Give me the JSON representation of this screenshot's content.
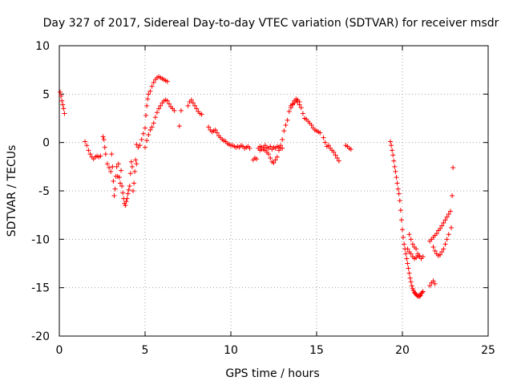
{
  "chart_data": {
    "type": "scatter",
    "title": "Day 327 of 2017, Sidereal Day-to-day VTEC variation (SDTVAR) for receiver msdr",
    "xlabel": "GPS time / hours",
    "ylabel": "SDTVAR / TECUs",
    "xlim": [
      0,
      25
    ],
    "ylim": [
      -20,
      10
    ],
    "xticks": [
      0,
      5,
      10,
      15,
      20,
      25
    ],
    "yticks": [
      -20,
      -15,
      -10,
      -5,
      0,
      5,
      10
    ],
    "grid": true,
    "marker": "+",
    "color": "#ff0000",
    "series": [
      {
        "name": "seg1",
        "x": [
          0.05,
          0.1,
          0.15,
          0.2,
          0.25,
          0.3
        ],
        "y": [
          5.2,
          4.8,
          4.3,
          3.9,
          3.5,
          3.0
        ]
      },
      {
        "name": "seg2",
        "x": [
          1.5,
          1.6,
          1.7,
          1.8,
          1.9,
          2.0,
          2.1,
          2.2,
          2.3,
          2.4
        ],
        "y": [
          0.1,
          -0.3,
          -0.8,
          -1.2,
          -1.5,
          -1.7,
          -1.5,
          -1.4,
          -1.5,
          -1.4
        ]
      },
      {
        "name": "seg3",
        "x": [
          2.55,
          2.6,
          2.65,
          2.7,
          2.8,
          2.9,
          3.0,
          3.05,
          3.1,
          3.15,
          3.2,
          3.25,
          3.3,
          3.35,
          3.4,
          3.45,
          3.5,
          3.55,
          3.6,
          3.65,
          3.7,
          3.75,
          3.8,
          3.85,
          3.9,
          3.95,
          4.0,
          4.05,
          4.1,
          4.15,
          4.2,
          4.25,
          4.3,
          4.35,
          4.4,
          4.45,
          4.5
        ],
        "y": [
          0.6,
          0.3,
          -0.5,
          -1.2,
          -2.2,
          -2.6,
          -3.0,
          -1.2,
          -2.5,
          -4.0,
          -5.5,
          -4.8,
          -3.5,
          -2.5,
          -3.5,
          -2.2,
          -3.6,
          -4.2,
          -2.9,
          -4.5,
          -5.2,
          -5.8,
          -6.3,
          -6.5,
          -6.1,
          -5.8,
          -5.3,
          -4.9,
          -4.5,
          -3.2,
          -2.0,
          -2.5,
          -5.0,
          -4.2,
          -3.0,
          -1.8,
          -2.2
        ]
      },
      {
        "name": "seg4",
        "x": [
          4.5,
          4.6,
          4.7,
          4.8,
          4.9,
          5.0,
          5.05,
          5.1,
          5.15,
          5.2,
          5.3,
          5.4,
          5.5,
          5.6,
          5.7,
          5.8,
          5.9,
          6.0,
          6.1,
          6.2,
          6.3
        ],
        "y": [
          -0.2,
          -0.5,
          -0.3,
          0.3,
          0.9,
          1.5,
          2.8,
          3.8,
          4.5,
          5.0,
          5.3,
          5.8,
          6.2,
          6.5,
          6.7,
          6.8,
          6.7,
          6.6,
          6.5,
          6.4,
          6.3
        ]
      },
      {
        "name": "seg5",
        "x": [
          5.0,
          5.1,
          5.2,
          5.3,
          5.4,
          5.5,
          5.6,
          5.7,
          5.8,
          5.9,
          6.0,
          6.1,
          6.2,
          6.3,
          6.4,
          6.5,
          6.6,
          6.7
        ],
        "y": [
          -0.5,
          0.2,
          0.8,
          1.3,
          1.6,
          2.0,
          2.6,
          3.1,
          3.5,
          3.8,
          4.1,
          4.3,
          4.4,
          4.3,
          4.0,
          3.7,
          3.5,
          3.3
        ]
      },
      {
        "name": "seg6",
        "x": [
          7.0,
          7.1,
          7.5,
          7.6,
          7.7,
          7.8,
          7.9,
          8.0,
          8.1,
          8.2,
          8.3
        ],
        "y": [
          1.7,
          3.3,
          3.8,
          4.2,
          4.4,
          4.1,
          3.8,
          3.5,
          3.2,
          3.0,
          2.9
        ]
      },
      {
        "name": "seg7",
        "x": [
          8.7,
          8.8,
          8.9,
          9.0,
          9.1,
          9.2,
          9.3,
          9.4,
          9.5,
          9.6,
          9.7,
          9.8,
          9.9,
          10.0,
          10.1,
          10.2,
          10.3,
          10.4,
          10.5,
          10.6,
          10.7,
          10.8,
          10.9,
          11.0,
          11.1
        ],
        "y": [
          1.6,
          1.3,
          1.1,
          1.2,
          1.3,
          1.0,
          0.7,
          0.5,
          0.3,
          0.2,
          0.1,
          -0.1,
          -0.2,
          -0.3,
          -0.3,
          -0.4,
          -0.5,
          -0.4,
          -0.5,
          -0.3,
          -0.4,
          -0.6,
          -0.5,
          -0.4,
          -0.6
        ]
      },
      {
        "name": "seg8",
        "x": [
          11.3,
          11.4,
          11.5,
          11.6,
          11.7,
          11.8,
          11.9,
          12.0,
          12.1,
          12.2,
          12.3,
          12.4,
          12.5,
          12.6,
          12.7,
          12.8,
          12.9,
          13.0,
          13.1,
          13.2,
          13.3
        ],
        "y": [
          -1.8,
          -1.6,
          -1.7,
          -0.6,
          -0.4,
          -0.5,
          -0.7,
          -0.8,
          -1.0,
          -1.2,
          -1.6,
          -2.0,
          -2.1,
          -1.8,
          -1.5,
          -0.8,
          -0.6,
          0.3,
          1.2,
          1.8,
          2.3
        ]
      },
      {
        "name": "seg9",
        "x": [
          11.7,
          11.8,
          11.9,
          12.0,
          12.1,
          12.2,
          12.3,
          12.4,
          12.5,
          12.6,
          12.7,
          12.8,
          12.9,
          13.0
        ],
        "y": [
          -0.8,
          -0.7,
          -0.5,
          -0.3,
          -0.5,
          -0.6,
          -0.4,
          -0.7,
          -0.5,
          -0.6,
          -0.4,
          -0.5,
          -0.3,
          -0.6
        ]
      },
      {
        "name": "seg10",
        "x": [
          13.4,
          13.5,
          13.6,
          13.7,
          13.8,
          13.9,
          14.0,
          14.1,
          14.2,
          14.3,
          14.4,
          14.5,
          14.6,
          14.7,
          14.8,
          14.9,
          15.0,
          15.1,
          15.2
        ],
        "y": [
          3.2,
          3.6,
          3.9,
          4.1,
          4.3,
          4.4,
          4.2,
          3.6,
          3.0,
          2.5,
          2.4,
          2.2,
          2.0,
          1.8,
          1.5,
          1.3,
          1.2,
          1.1,
          1.0
        ]
      },
      {
        "name": "seg11",
        "x": [
          13.5,
          13.6,
          13.7,
          13.8,
          13.9,
          14.0
        ],
        "y": [
          3.8,
          4.0,
          4.3,
          4.5,
          4.2,
          3.9
        ]
      },
      {
        "name": "seg12",
        "x": [
          15.4,
          15.5,
          15.6,
          15.7,
          15.8,
          15.9,
          16.0,
          16.1,
          16.2,
          16.3
        ],
        "y": [
          0.5,
          0.0,
          -0.4,
          -0.3,
          -0.6,
          -0.8,
          -1.0,
          -1.3,
          -1.6,
          -1.9
        ]
      },
      {
        "name": "seg13",
        "x": [
          16.7,
          16.8,
          16.9,
          17.0
        ],
        "y": [
          -0.3,
          -0.4,
          -0.6,
          -0.7
        ]
      },
      {
        "name": "seg14",
        "x": [
          19.3,
          19.35,
          19.4,
          19.45,
          19.5,
          19.55,
          19.6,
          19.65,
          19.7,
          19.75,
          19.8,
          19.85,
          19.9,
          19.95,
          20.0,
          20.05,
          20.1,
          20.15,
          20.2,
          20.25,
          20.3,
          20.35,
          20.4,
          20.45,
          20.5,
          20.55,
          20.6,
          20.65,
          20.7,
          20.75,
          20.8,
          20.85,
          20.9,
          20.95,
          21.0,
          21.05,
          21.1,
          21.15,
          21.2
        ],
        "y": [
          0.1,
          -0.3,
          -0.8,
          -1.3,
          -1.9,
          -2.5,
          -3.0,
          -3.6,
          -4.2,
          -4.8,
          -5.3,
          -6.0,
          -7.0,
          -8.0,
          -9.0,
          -9.8,
          -10.5,
          -11.0,
          -11.5,
          -12.0,
          -12.5,
          -13.0,
          -13.5,
          -14.0,
          -14.4,
          -14.8,
          -15.1,
          -15.3,
          -15.5,
          -15.6,
          -15.7,
          -15.8,
          -15.9,
          -15.8,
          -15.9,
          -15.8,
          -15.6,
          -15.5,
          -15.4
        ]
      },
      {
        "name": "seg15",
        "x": [
          20.4,
          20.5,
          20.6,
          20.7,
          20.8,
          20.9,
          21.0,
          21.1,
          21.2
        ],
        "y": [
          -9.5,
          -10.0,
          -10.5,
          -10.8,
          -11.0,
          -11.5,
          -11.7,
          -12.0,
          -11.8
        ]
      },
      {
        "name": "seg16",
        "x": [
          20.3,
          20.4,
          20.5,
          20.6,
          20.7,
          20.8,
          20.9,
          21.0
        ],
        "y": [
          -11.0,
          -11.3,
          -11.5,
          -11.8,
          -12.0,
          -11.9,
          -11.7,
          -11.8
        ]
      },
      {
        "name": "seg17",
        "x": [
          21.6,
          21.7,
          21.8,
          21.9
        ],
        "y": [
          -14.8,
          -14.5,
          -14.3,
          -14.6
        ]
      },
      {
        "name": "seg18",
        "x": [
          21.6,
          21.7,
          21.8,
          21.9,
          22.0,
          22.1,
          22.2,
          22.3,
          22.4,
          22.5,
          22.6,
          22.7,
          22.8
        ],
        "y": [
          -10.2,
          -10.0,
          -9.8,
          -9.6,
          -9.4,
          -9.1,
          -8.9,
          -8.6,
          -8.3,
          -8.0,
          -7.7,
          -7.4,
          -7.1
        ]
      },
      {
        "name": "seg19",
        "x": [
          21.8,
          21.9,
          22.0,
          22.1,
          22.2,
          22.3,
          22.4,
          22.5,
          22.6,
          22.7
        ],
        "y": [
          -10.8,
          -11.2,
          -11.5,
          -11.7,
          -11.6,
          -11.3,
          -11.0,
          -10.5,
          -10.0,
          -9.5
        ]
      },
      {
        "name": "seg20",
        "x": [
          22.85,
          22.9,
          22.95
        ],
        "y": [
          -8.8,
          -5.5,
          -2.6
        ]
      }
    ]
  }
}
